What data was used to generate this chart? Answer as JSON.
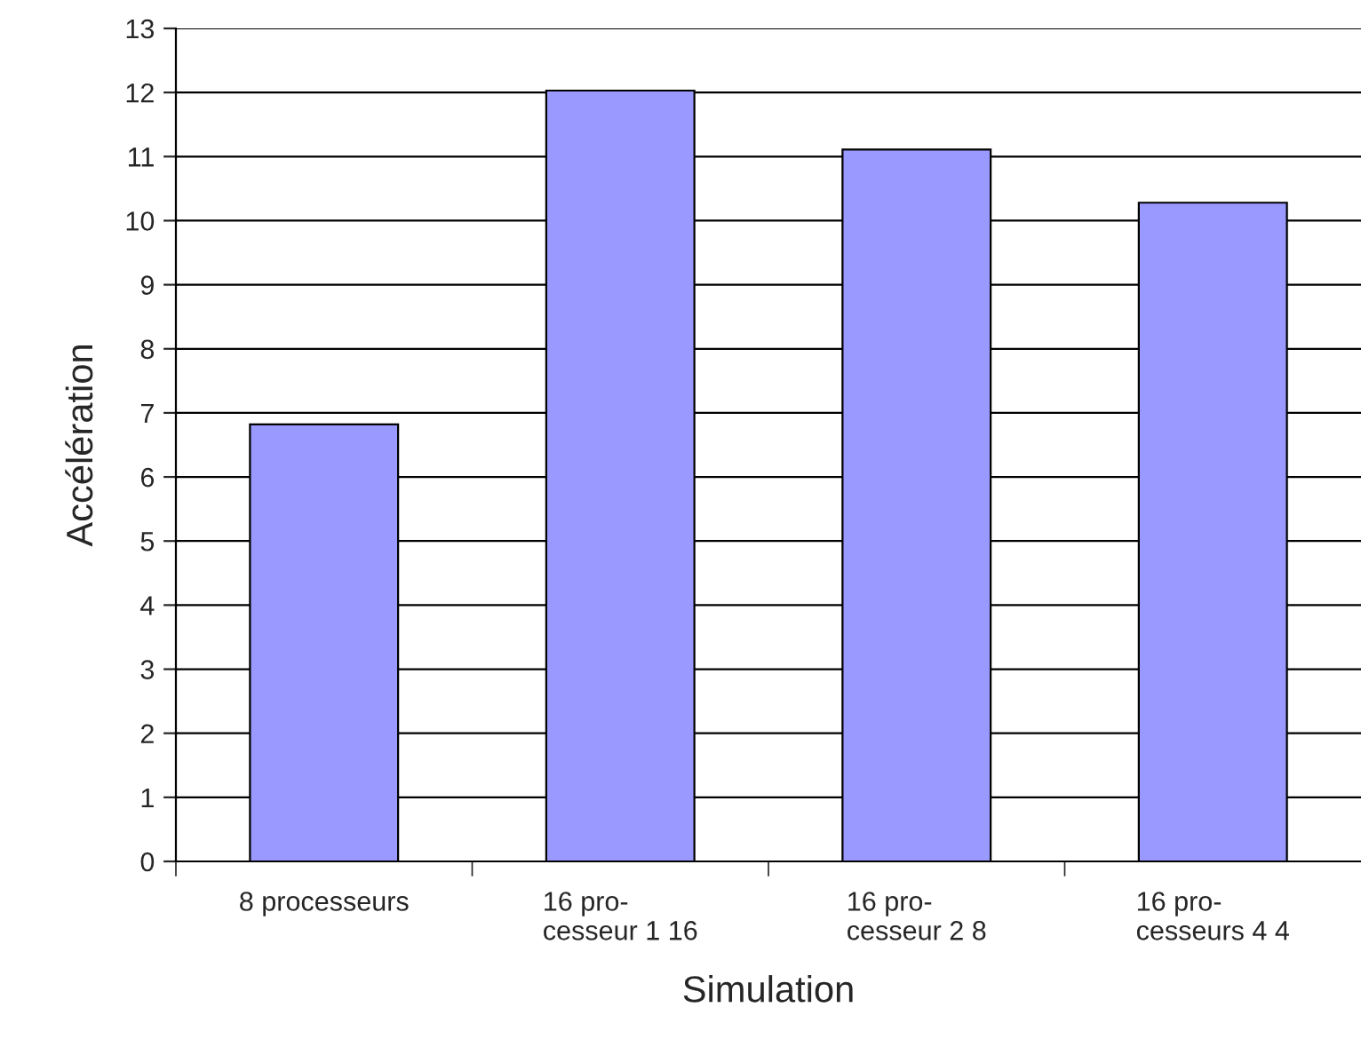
{
  "chart_data": {
    "type": "bar",
    "xlabel": "Simulation",
    "ylabel": "Accélération",
    "categories": [
      "8 processeurs",
      "16 pro-\ncesseur 1 16",
      "16 pro-\ncesseur 2 8",
      "16 pro-\ncesseurs 4 4"
    ],
    "values": [
      6.82,
      12.03,
      11.11,
      10.28
    ],
    "color": "#9999ff",
    "ylim": [
      0,
      13
    ],
    "yticks": [
      0,
      1,
      2,
      3,
      4,
      5,
      6,
      7,
      8,
      9,
      10,
      11,
      12,
      13
    ],
    "grid": "y",
    "legend": false
  }
}
